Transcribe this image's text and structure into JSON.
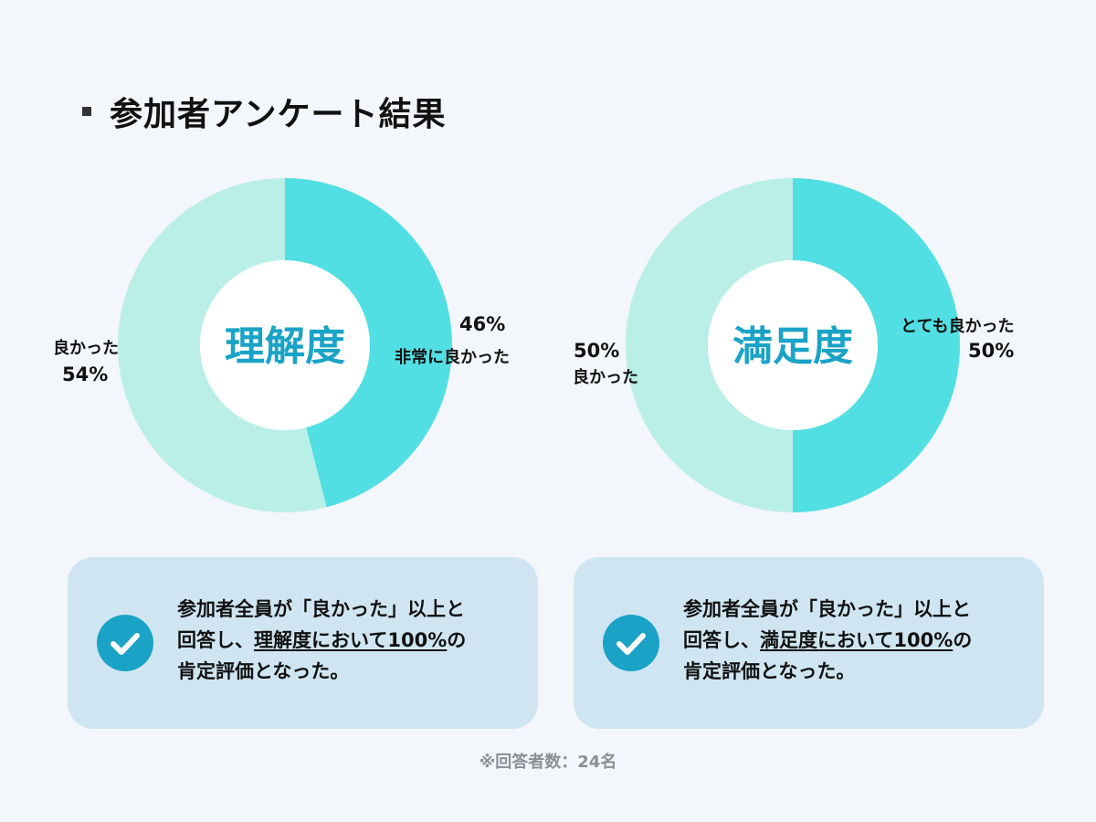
{
  "title": "参加者アンケート結果",
  "colors": {
    "light": "#b9efe6",
    "dark": "#52dfe3",
    "center_text": "#1aa3c6",
    "check": "#1aa3c6",
    "card": "#cfe6f2"
  },
  "chart_data": [
    {
      "type": "pie",
      "center_label": "理解度",
      "slices": [
        {
          "label": "非常に良かった",
          "value": 46,
          "value_label": "46%",
          "color": "#52dfe3"
        },
        {
          "label": "良かった",
          "value": 54,
          "value_label": "54%",
          "color": "#b9efe6"
        }
      ]
    },
    {
      "type": "pie",
      "center_label": "満足度",
      "slices": [
        {
          "label": "とても良かった",
          "value": 50,
          "value_label": "50%",
          "color": "#52dfe3"
        },
        {
          "label": "良かった",
          "value": 50,
          "value_label": "50%",
          "color": "#b9efe6"
        }
      ]
    }
  ],
  "cards": [
    {
      "pre": "参加者全員が「良かった」以上と",
      "mid_pre": "回答し、",
      "underline": "理解度において100%",
      "post": "の",
      "last": "肯定評価となった。"
    },
    {
      "pre": "参加者全員が「良かった」以上と",
      "mid_pre": "回答し、",
      "underline": "満足度において100%",
      "post": "の",
      "last": "肯定評価となった。"
    }
  ],
  "footnote": "※回答者数：24名"
}
